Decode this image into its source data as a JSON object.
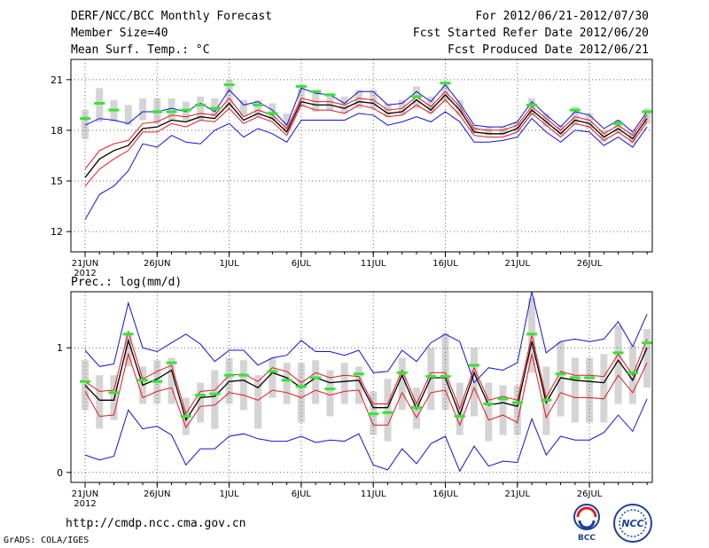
{
  "header": {
    "title": "DERF/NCC/BCC Monthly Forecast",
    "member_size": "Member Size=40",
    "variable": "Mean Surf. Temp.: °C",
    "period": "For 2012/06/21-2012/07/30",
    "start_date": "Fcst Started Refer Date 2012/06/20",
    "produced_date": "Fcst Produced Date 2012/06/21"
  },
  "footer": {
    "url": "http://cmdp.ncc.cma.gov.cn",
    "credit": "GrADS: COLA/IGES",
    "logo_bcc": "BCC",
    "logo_ncc": "NCC"
  },
  "colors": {
    "ensemble_mean": "#000000",
    "inner_envelope": "#e8141e",
    "outer_envelope": "#1010d8",
    "spread_box": "#d4d4d4",
    "observed": "#30e830"
  },
  "chart_data": [
    {
      "type": "line",
      "title": "Mean Surf. Temp.: °C",
      "xlabel": "",
      "ylabel": "°C",
      "ylim": [
        10.8,
        22.2
      ],
      "yticks": [
        12,
        15,
        18,
        21
      ],
      "xlim": [
        21,
        60
      ],
      "xticks": [
        {
          "day": 21,
          "label": "21JUN",
          "sub": "2012"
        },
        {
          "day": 26,
          "label": "26JUN"
        },
        {
          "day": 31,
          "label": "1JUL"
        },
        {
          "day": 36,
          "label": "6JUL"
        },
        {
          "day": 41,
          "label": "11JUL"
        },
        {
          "day": 46,
          "label": "16JUL"
        },
        {
          "day": 51,
          "label": "21JUL"
        },
        {
          "day": 56,
          "label": "26JUL"
        }
      ],
      "grid": true,
      "x": [
        21,
        22,
        23,
        24,
        25,
        26,
        27,
        28,
        29,
        30,
        31,
        32,
        33,
        34,
        35,
        36,
        37,
        38,
        39,
        40,
        41,
        42,
        43,
        44,
        45,
        46,
        47,
        48,
        49,
        50,
        51,
        52,
        53,
        54,
        55,
        56,
        57,
        58,
        59,
        60
      ],
      "series": [
        {
          "name": "upper outer",
          "values": [
            18.3,
            18.7,
            18.6,
            18.4,
            19.1,
            19.1,
            19.3,
            19.1,
            19.6,
            19.1,
            20.4,
            19.5,
            19.7,
            19.2,
            18.3,
            20.5,
            20.2,
            20.1,
            19.6,
            20.3,
            20.3,
            19.5,
            19.6,
            20.3,
            19.7,
            20.7,
            19.6,
            18.3,
            18.2,
            18.2,
            18.5,
            19.7,
            18.9,
            18.2,
            19.1,
            18.9,
            18.1,
            18.6,
            17.9,
            19.1
          ]
        },
        {
          "name": "upper inner",
          "values": [
            15.7,
            16.8,
            17.2,
            17.4,
            18.4,
            18.5,
            18.9,
            18.8,
            19.0,
            18.9,
            19.9,
            18.8,
            19.2,
            18.9,
            18.1,
            19.9,
            19.7,
            19.7,
            19.5,
            19.9,
            19.8,
            19.2,
            19.3,
            20.0,
            19.4,
            20.3,
            19.4,
            18.1,
            18.0,
            18.0,
            18.3,
            19.4,
            18.7,
            18.0,
            18.8,
            18.6,
            17.8,
            18.3,
            17.7,
            18.9
          ]
        },
        {
          "name": "ensemble mean",
          "values": [
            15.2,
            16.3,
            16.8,
            17.1,
            18.1,
            18.2,
            18.6,
            18.5,
            18.8,
            18.7,
            19.6,
            18.6,
            19.0,
            18.7,
            17.9,
            19.7,
            19.5,
            19.5,
            19.3,
            19.7,
            19.6,
            19.0,
            19.1,
            19.8,
            19.2,
            20.1,
            19.2,
            17.9,
            17.8,
            17.8,
            18.1,
            19.2,
            18.5,
            17.8,
            18.6,
            18.4,
            17.6,
            18.1,
            17.5,
            18.7
          ]
        },
        {
          "name": "lower inner",
          "values": [
            14.7,
            15.7,
            16.3,
            16.8,
            17.9,
            17.9,
            18.4,
            18.2,
            18.6,
            18.5,
            19.3,
            18.4,
            18.8,
            18.5,
            17.7,
            19.5,
            19.2,
            19.2,
            19.0,
            19.5,
            19.3,
            18.8,
            18.9,
            19.5,
            19.0,
            19.8,
            18.9,
            17.7,
            17.6,
            17.6,
            17.9,
            19.0,
            18.3,
            17.6,
            18.4,
            18.2,
            17.4,
            17.9,
            17.3,
            18.5
          ]
        },
        {
          "name": "lower outer",
          "values": [
            12.7,
            14.2,
            14.7,
            15.6,
            17.2,
            17.0,
            17.7,
            17.3,
            17.2,
            18.0,
            18.4,
            17.6,
            18.1,
            17.8,
            17.3,
            18.6,
            18.6,
            18.6,
            18.6,
            19.0,
            18.9,
            18.3,
            18.5,
            18.8,
            18.5,
            19.1,
            18.5,
            17.3,
            17.3,
            17.4,
            17.6,
            18.7,
            17.9,
            17.3,
            18.0,
            17.9,
            17.1,
            17.6,
            17.0,
            18.2
          ]
        }
      ],
      "spread_boxes": [
        [
          17.5,
          19.2
        ],
        [
          18.5,
          20.5
        ],
        [
          18.5,
          19.8
        ],
        [
          18.3,
          19.5
        ],
        [
          18.6,
          19.9
        ],
        [
          18.4,
          19.9
        ],
        [
          18.6,
          19.9
        ],
        [
          18.6,
          19.7
        ],
        [
          18.6,
          20.0
        ],
        [
          18.8,
          19.9
        ],
        [
          19.3,
          21.0
        ],
        [
          18.9,
          19.8
        ],
        [
          18.8,
          19.8
        ],
        [
          18.6,
          19.6
        ],
        [
          18.0,
          19.0
        ],
        [
          19.4,
          20.5
        ],
        [
          19.1,
          20.3
        ],
        [
          19.2,
          20.2
        ],
        [
          19.0,
          20.0
        ],
        [
          19.3,
          20.4
        ],
        [
          19.3,
          20.4
        ],
        [
          18.8,
          19.6
        ],
        [
          18.9,
          19.8
        ],
        [
          19.3,
          20.6
        ],
        [
          19.0,
          20.0
        ],
        [
          19.7,
          20.8
        ],
        [
          18.9,
          19.8
        ],
        [
          17.8,
          18.3
        ],
        [
          17.7,
          18.2
        ],
        [
          17.7,
          18.2
        ],
        [
          17.9,
          18.5
        ],
        [
          18.9,
          19.9
        ],
        [
          18.2,
          19.0
        ],
        [
          17.7,
          18.3
        ],
        [
          18.3,
          19.4
        ],
        [
          18.1,
          19.0
        ],
        [
          17.3,
          18.0
        ],
        [
          17.8,
          18.6
        ],
        [
          17.2,
          17.9
        ],
        [
          18.4,
          19.3
        ]
      ],
      "observed": [
        18.7,
        19.6,
        19.2,
        null,
        null,
        19.1,
        19.1,
        19.2,
        19.5,
        19.3,
        20.7,
        null,
        19.5,
        19.0,
        null,
        20.6,
        20.3,
        20.1,
        null,
        null,
        null,
        null,
        null,
        20.0,
        null,
        20.8,
        null,
        null,
        null,
        null,
        null,
        19.5,
        null,
        null,
        19.2,
        null,
        null,
        18.4,
        null,
        19.1
      ]
    },
    {
      "type": "line",
      "title": "Prec.: log(mm/d)",
      "xlabel": "",
      "ylabel": "log(mm/d)",
      "ylim": [
        -0.08,
        1.45
      ],
      "yticks": [
        0,
        1
      ],
      "xlim": [
        21,
        60
      ],
      "xticks": [
        {
          "day": 21,
          "label": "21JUN",
          "sub": "2012"
        },
        {
          "day": 26,
          "label": "26JUN"
        },
        {
          "day": 31,
          "label": "1JUL"
        },
        {
          "day": 36,
          "label": "6JUL"
        },
        {
          "day": 41,
          "label": "11JUL"
        },
        {
          "day": 46,
          "label": "16JUL"
        },
        {
          "day": 51,
          "label": "21JUL"
        },
        {
          "day": 56,
          "label": "26JUL"
        }
      ],
      "grid": true,
      "x": [
        21,
        22,
        23,
        24,
        25,
        26,
        27,
        28,
        29,
        30,
        31,
        32,
        33,
        34,
        35,
        36,
        37,
        38,
        39,
        40,
        41,
        42,
        43,
        44,
        45,
        46,
        47,
        48,
        49,
        50,
        51,
        52,
        53,
        54,
        55,
        56,
        57,
        58,
        59,
        60
      ],
      "series": [
        {
          "name": "upper outer",
          "values": [
            0.98,
            0.85,
            0.87,
            1.36,
            1.0,
            0.97,
            1.04,
            1.11,
            1.03,
            0.89,
            0.98,
            0.98,
            0.86,
            0.92,
            0.94,
            1.06,
            0.97,
            0.97,
            0.94,
            0.98,
            0.8,
            0.81,
            0.98,
            0.89,
            1.04,
            1.11,
            1.05,
            0.72,
            0.84,
            0.82,
            0.88,
            1.45,
            0.96,
            1.05,
            1.07,
            1.05,
            1.07,
            1.21,
            1.01,
            1.27
          ]
        },
        {
          "name": "upper inner",
          "values": [
            0.73,
            0.65,
            0.66,
            1.13,
            0.75,
            0.81,
            0.86,
            0.47,
            0.65,
            0.66,
            0.78,
            0.79,
            0.73,
            0.84,
            0.81,
            0.72,
            0.8,
            0.76,
            0.78,
            0.77,
            0.55,
            0.55,
            0.82,
            0.55,
            0.8,
            0.8,
            0.51,
            0.84,
            0.58,
            0.61,
            0.58,
            1.1,
            0.6,
            0.81,
            0.78,
            0.78,
            0.77,
            0.95,
            0.78,
            1.07
          ]
        },
        {
          "name": "ensemble mean",
          "values": [
            0.7,
            0.58,
            0.58,
            1.06,
            0.7,
            0.75,
            0.82,
            0.42,
            0.6,
            0.61,
            0.73,
            0.74,
            0.68,
            0.8,
            0.76,
            0.68,
            0.76,
            0.72,
            0.73,
            0.74,
            0.52,
            0.52,
            0.78,
            0.51,
            0.76,
            0.76,
            0.46,
            0.8,
            0.54,
            0.56,
            0.53,
            1.05,
            0.56,
            0.76,
            0.74,
            0.73,
            0.72,
            0.9,
            0.74,
            1.0
          ]
        },
        {
          "name": "lower inner",
          "values": [
            0.65,
            0.45,
            0.46,
            0.95,
            0.6,
            0.65,
            0.68,
            0.36,
            0.53,
            0.54,
            0.64,
            0.62,
            0.58,
            0.66,
            0.64,
            0.6,
            0.66,
            0.62,
            0.65,
            0.66,
            0.38,
            0.38,
            0.64,
            0.44,
            0.64,
            0.66,
            0.38,
            0.68,
            0.42,
            0.46,
            0.4,
            0.95,
            0.44,
            0.64,
            0.6,
            0.6,
            0.59,
            0.78,
            0.64,
            0.88
          ]
        },
        {
          "name": "lower outer",
          "values": [
            0.14,
            0.1,
            0.13,
            0.5,
            0.35,
            0.37,
            0.3,
            0.06,
            0.19,
            0.19,
            0.29,
            0.31,
            0.27,
            0.25,
            0.25,
            0.29,
            0.24,
            0.26,
            0.25,
            0.31,
            0.06,
            0.02,
            0.19,
            0.07,
            0.23,
            0.29,
            0.01,
            0.21,
            0.05,
            0.09,
            0.08,
            0.43,
            0.14,
            0.29,
            0.26,
            0.26,
            0.32,
            0.46,
            0.33,
            0.59
          ]
        }
      ],
      "spread_boxes": [
        [
          0.5,
          0.9
        ],
        [
          0.35,
          0.78
        ],
        [
          0.42,
          0.78
        ],
        [
          0.85,
          1.12
        ],
        [
          0.55,
          0.85
        ],
        [
          0.55,
          0.9
        ],
        [
          0.55,
          0.92
        ],
        [
          0.3,
          0.6
        ],
        [
          0.4,
          0.72
        ],
        [
          0.35,
          0.82
        ],
        [
          0.55,
          0.92
        ],
        [
          0.5,
          0.9
        ],
        [
          0.35,
          0.78
        ],
        [
          0.6,
          0.92
        ],
        [
          0.55,
          0.88
        ],
        [
          0.4,
          0.88
        ],
        [
          0.55,
          0.9
        ],
        [
          0.45,
          0.82
        ],
        [
          0.55,
          0.88
        ],
        [
          0.55,
          0.85
        ],
        [
          0.3,
          0.65
        ],
        [
          0.25,
          0.75
        ],
        [
          0.5,
          0.92
        ],
        [
          0.35,
          0.68
        ],
        [
          0.5,
          1.0
        ],
        [
          0.5,
          1.12
        ],
        [
          0.3,
          0.72
        ],
        [
          0.45,
          1.0
        ],
        [
          0.25,
          0.72
        ],
        [
          0.3,
          0.7
        ],
        [
          0.3,
          0.7
        ],
        [
          0.8,
          1.4
        ],
        [
          0.3,
          0.85
        ],
        [
          0.45,
          1.05
        ],
        [
          0.4,
          0.92
        ],
        [
          0.4,
          0.92
        ],
        [
          0.4,
          0.95
        ],
        [
          0.55,
          1.18
        ],
        [
          0.55,
          1.02
        ],
        [
          0.68,
          1.15
        ]
      ],
      "observed": [
        0.73,
        null,
        0.64,
        1.11,
        0.74,
        0.73,
        0.88,
        0.45,
        0.62,
        0.63,
        0.78,
        0.78,
        null,
        0.81,
        0.74,
        0.69,
        0.76,
        0.67,
        null,
        0.79,
        0.47,
        0.48,
        0.8,
        0.52,
        0.77,
        0.77,
        0.45,
        0.86,
        0.55,
        0.59,
        0.56,
        1.11,
        0.58,
        0.79,
        0.76,
        0.76,
        null,
        0.96,
        0.8,
        1.04
      ]
    }
  ]
}
